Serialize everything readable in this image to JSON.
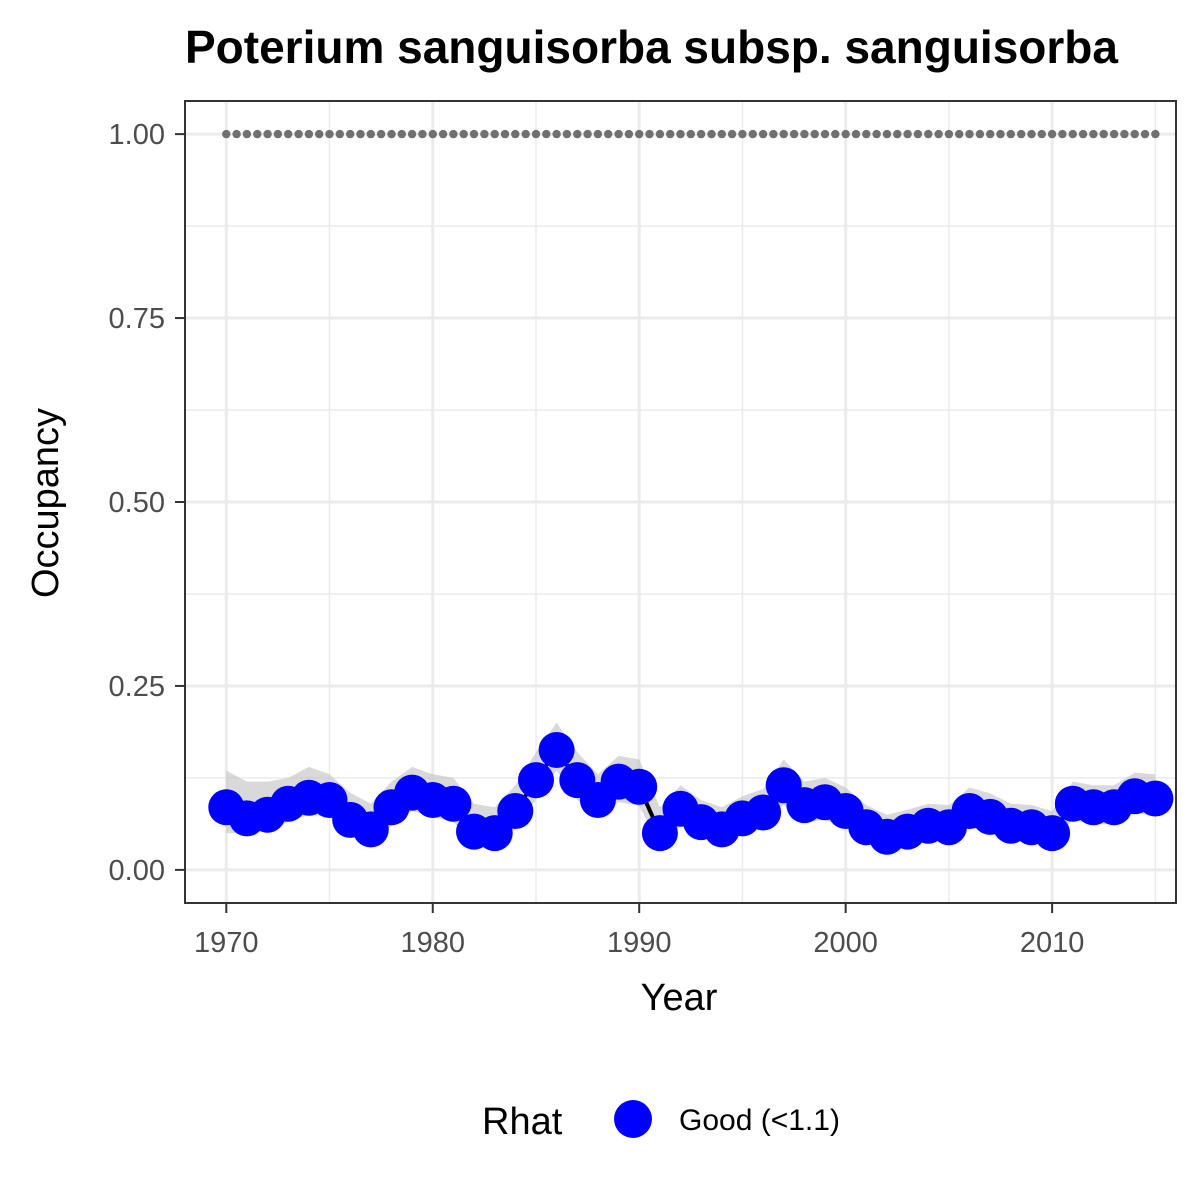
{
  "chart_data": {
    "type": "line",
    "title": "Poterium sanguisorba subsp. sanguisorba",
    "xlabel": "Year",
    "ylabel": "Occupancy",
    "xlim": [
      1968,
      2016
    ],
    "ylim": [
      -0.045,
      1.045
    ],
    "x_ticks": [
      1970,
      1980,
      1990,
      2000,
      2010
    ],
    "y_ticks": [
      0.0,
      0.25,
      0.5,
      0.75,
      1.0
    ],
    "x_tick_labels": [
      "1970",
      "1980",
      "1990",
      "2000",
      "2010"
    ],
    "y_tick_labels": [
      "0.00",
      "0.25",
      "0.50",
      "0.75",
      "1.00"
    ],
    "grid": true,
    "legend_position": "bottom",
    "legend": {
      "title": "Rhat",
      "items": [
        {
          "label": "Good (<1.1)",
          "color": "#0000ff"
        }
      ]
    },
    "colors": {
      "points": "#0000ff",
      "line": "#000000",
      "ribbon": "#bfbfbf",
      "reference": "#707070",
      "grid": "#ebebeb",
      "panel_border": "#333333"
    },
    "reference_line": {
      "y": 1.0,
      "style": "dotted"
    },
    "series": [
      {
        "x": [
          1970,
          1971,
          1972,
          1973,
          1974,
          1975,
          1976,
          1977,
          1978,
          1979,
          1980,
          1981,
          1982,
          1983,
          1984,
          1985,
          1986,
          1987,
          1988,
          1989,
          1990,
          1991,
          1992,
          1993,
          1994,
          1995,
          1996,
          1997,
          1998,
          1999,
          2000,
          2001,
          2002,
          2003,
          2004,
          2005,
          2006,
          2007,
          2008,
          2009,
          2010,
          2011,
          2012,
          2013,
          2014,
          2015
        ],
        "y": [
          0.085,
          0.07,
          0.075,
          0.09,
          0.098,
          0.095,
          0.068,
          0.055,
          0.085,
          0.105,
          0.095,
          0.09,
          0.052,
          0.05,
          0.08,
          0.122,
          0.163,
          0.122,
          0.095,
          0.12,
          0.113,
          0.05,
          0.083,
          0.065,
          0.055,
          0.07,
          0.078,
          0.115,
          0.088,
          0.092,
          0.08,
          0.058,
          0.045,
          0.052,
          0.06,
          0.058,
          0.08,
          0.072,
          0.06,
          0.058,
          0.05,
          0.09,
          0.085,
          0.085,
          0.1,
          0.097
        ],
        "lower": [
          0.05,
          0.05,
          0.055,
          0.065,
          0.075,
          0.072,
          0.045,
          0.038,
          0.06,
          0.08,
          0.072,
          0.065,
          0.035,
          0.035,
          0.055,
          0.095,
          0.135,
          0.095,
          0.07,
          0.092,
          0.087,
          0.032,
          0.06,
          0.045,
          0.038,
          0.05,
          0.058,
          0.088,
          0.065,
          0.068,
          0.058,
          0.04,
          0.03,
          0.036,
          0.042,
          0.04,
          0.058,
          0.05,
          0.042,
          0.04,
          0.034,
          0.068,
          0.062,
          0.062,
          0.078,
          0.072
        ],
        "upper": [
          0.135,
          0.12,
          0.12,
          0.125,
          0.14,
          0.13,
          0.105,
          0.09,
          0.12,
          0.14,
          0.13,
          0.125,
          0.09,
          0.085,
          0.115,
          0.16,
          0.2,
          0.16,
          0.13,
          0.155,
          0.15,
          0.085,
          0.115,
          0.095,
          0.085,
          0.1,
          0.11,
          0.15,
          0.12,
          0.125,
          0.112,
          0.088,
          0.075,
          0.082,
          0.09,
          0.088,
          0.112,
          0.104,
          0.09,
          0.088,
          0.08,
          0.12,
          0.115,
          0.115,
          0.132,
          0.13
        ]
      }
    ]
  }
}
